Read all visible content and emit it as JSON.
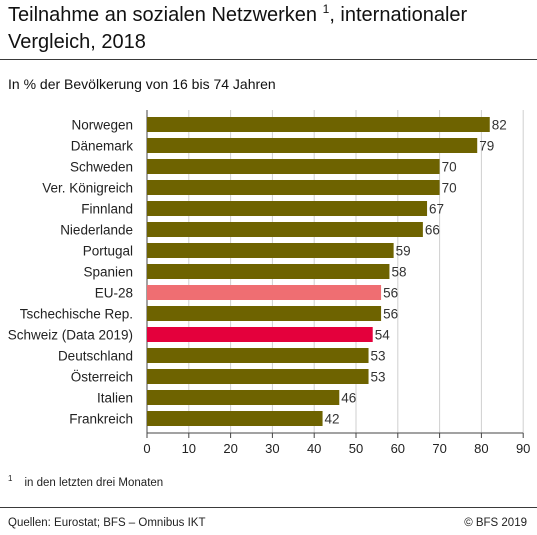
{
  "header": {
    "title": "Teilnahme an sozialen Netzwerken",
    "title_sup": "1",
    "title_rest": ", internationaler Vergleich, 2018",
    "subtitle": "In % der Bevölkerung von 16 bis 74 Jahren"
  },
  "footer": {
    "footnote_mark": "1",
    "footnote": "in den letzten drei Monaten",
    "source": "Quellen: Eurostat; BFS – Omnibus IKT",
    "copyright": "© BFS 2019"
  },
  "colors": {
    "default": "#6e6300",
    "eu": "#ef6e72",
    "switzerland": "#e4003c"
  },
  "chart_data": {
    "type": "bar",
    "orientation": "horizontal",
    "categories": [
      "Norwegen",
      "Dänemark",
      "Schweden",
      "Ver. Königreich",
      "Finnland",
      "Niederlande",
      "Portugal",
      "Spanien",
      "EU-28",
      "Tschechische Rep.",
      "Schweiz (Data 2019)",
      "Deutschland",
      "Österreich",
      "Italien",
      "Frankreich"
    ],
    "values": [
      82,
      79,
      70,
      70,
      67,
      66,
      59,
      58,
      56,
      56,
      54,
      53,
      53,
      46,
      42
    ],
    "highlight": {
      "EU-28": "eu",
      "Schweiz (Data 2019)": "switzerland"
    },
    "xlim": [
      0,
      90
    ],
    "xticks": [
      0,
      10,
      20,
      30,
      40,
      50,
      60,
      70,
      80,
      90
    ],
    "grid": true,
    "data_labels": true
  }
}
